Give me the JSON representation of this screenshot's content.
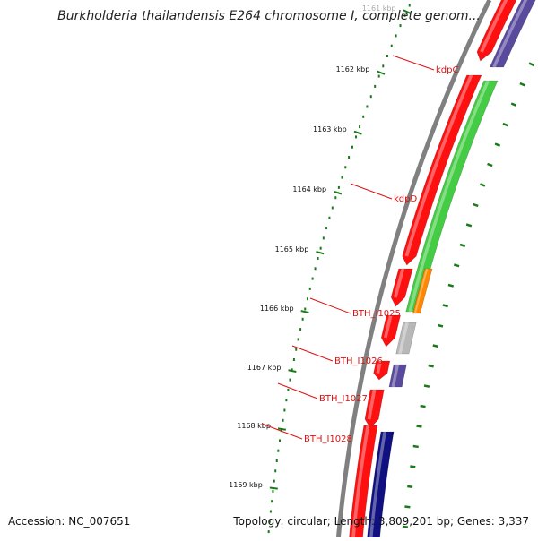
{
  "title": "Burkholderia thailandensis E264 chromosome I, complete genom...",
  "accession": "Accession: NC_007651",
  "summary": "Topology: circular; Length: 3,809,201 bp; Genes: 3,337",
  "colors": {
    "backbone": "#808080",
    "tick": "#1a7a1a",
    "gene_label": "#dd1111",
    "feature_red": "#ff1010",
    "feature_green": "#44cc44",
    "feature_purple": "#5a4a9e",
    "feature_navy": "#101080",
    "feature_orange": "#ff8800",
    "feature_gray": "#b8b8b8"
  },
  "ruler": {
    "labels": [
      "1161 kbp",
      "1162 kbp",
      "1163 kbp",
      "1164 kbp",
      "1165 kbp",
      "1166 kbp",
      "1167 kbp",
      "1168 kbp",
      "1169 kbp"
    ]
  },
  "gene_labels": [
    "kdpC",
    "kdpD",
    "BTH_I1025",
    "BTH_I1026",
    "BTH_I1027",
    "BTH_I1028"
  ]
}
